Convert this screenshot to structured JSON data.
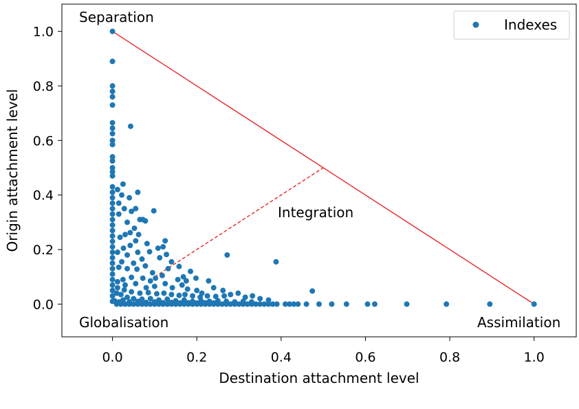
{
  "chart_data": {
    "type": "scatter",
    "xlabel": "Destination attachment level",
    "ylabel": "Origin attachment level",
    "xlim": [
      -0.12,
      1.1
    ],
    "ylim": [
      -0.12,
      1.1
    ],
    "x_ticks": [
      0.0,
      0.2,
      0.4,
      0.6,
      0.8,
      1.0
    ],
    "x_tick_labels": [
      "0.0",
      "0.2",
      "0.4",
      "0.6",
      "0.8",
      "1.0"
    ],
    "y_ticks": [
      0.0,
      0.2,
      0.4,
      0.6,
      0.8,
      1.0
    ],
    "y_tick_labels": [
      "0.0",
      "0.2",
      "0.4",
      "0.6",
      "0.8",
      "1.0"
    ],
    "grid": false,
    "legend": {
      "placement": "top-right",
      "entries": [
        "Indexes"
      ]
    },
    "colors": {
      "points": "#1f77b4",
      "lines": "#e8262a",
      "axes": "#000000"
    },
    "annotations": {
      "separation": "Separation",
      "integration": "Integration",
      "globalisation": "Globalisation",
      "assimilation": "Assimilation"
    },
    "reference_lines": [
      {
        "style": "solid",
        "x": [
          0.0,
          1.0
        ],
        "y": [
          1.0,
          0.0
        ]
      },
      {
        "style": "dashed",
        "x": [
          0.1,
          0.5
        ],
        "y": [
          0.1,
          0.5
        ]
      }
    ],
    "series": [
      {
        "name": "Indexes",
        "points": [
          [
            0.0,
            1.0
          ],
          [
            0.0,
            0.89
          ],
          [
            0.0,
            0.8
          ],
          [
            0.0,
            0.78
          ],
          [
            0.0,
            0.76
          ],
          [
            0.0,
            0.73
          ],
          [
            0.0,
            0.665
          ],
          [
            0.0,
            0.645
          ],
          [
            0.0,
            0.625
          ],
          [
            0.0,
            0.6
          ],
          [
            0.0,
            0.585
          ],
          [
            0.0,
            0.54
          ],
          [
            0.0,
            0.525
          ],
          [
            0.0,
            0.5
          ],
          [
            0.0,
            0.485
          ],
          [
            0.0,
            0.47
          ],
          [
            0.0,
            0.43
          ],
          [
            0.0,
            0.41
          ],
          [
            0.0,
            0.39
          ],
          [
            0.0,
            0.37
          ],
          [
            0.0,
            0.35
          ],
          [
            0.0,
            0.33
          ],
          [
            0.0,
            0.31
          ],
          [
            0.0,
            0.29
          ],
          [
            0.0,
            0.27
          ],
          [
            0.0,
            0.25
          ],
          [
            0.0,
            0.23
          ],
          [
            0.0,
            0.21
          ],
          [
            0.0,
            0.19
          ],
          [
            0.0,
            0.17
          ],
          [
            0.0,
            0.15
          ],
          [
            0.0,
            0.13
          ],
          [
            0.0,
            0.11
          ],
          [
            0.0,
            0.09
          ],
          [
            0.0,
            0.07
          ],
          [
            0.0,
            0.05
          ],
          [
            0.0,
            0.03
          ],
          [
            0.0,
            0.01
          ],
          [
            0.043,
            0.652
          ],
          [
            0.012,
            0.42
          ],
          [
            0.015,
            0.37
          ],
          [
            0.025,
            0.44
          ],
          [
            0.022,
            0.4
          ],
          [
            0.015,
            0.33
          ],
          [
            0.028,
            0.35
          ],
          [
            0.04,
            0.39
          ],
          [
            0.035,
            0.3
          ],
          [
            0.045,
            0.34
          ],
          [
            0.055,
            0.35
          ],
          [
            0.06,
            0.41
          ],
          [
            0.065,
            0.31
          ],
          [
            0.072,
            0.31
          ],
          [
            0.078,
            0.305
          ],
          [
            0.098,
            0.342
          ],
          [
            0.052,
            0.278
          ],
          [
            0.03,
            0.255
          ],
          [
            0.018,
            0.245
          ],
          [
            0.042,
            0.262
          ],
          [
            0.062,
            0.255
          ],
          [
            0.082,
            0.222
          ],
          [
            0.125,
            0.232
          ],
          [
            0.12,
            0.21
          ],
          [
            0.108,
            0.205
          ],
          [
            0.088,
            0.192
          ],
          [
            0.055,
            0.232
          ],
          [
            0.042,
            0.215
          ],
          [
            0.026,
            0.205
          ],
          [
            0.012,
            0.19
          ],
          [
            0.035,
            0.18
          ],
          [
            0.06,
            0.19
          ],
          [
            0.07,
            0.165
          ],
          [
            0.05,
            0.15
          ],
          [
            0.022,
            0.155
          ],
          [
            0.015,
            0.135
          ],
          [
            0.035,
            0.13
          ],
          [
            0.058,
            0.128
          ],
          [
            0.078,
            0.14
          ],
          [
            0.095,
            0.115
          ],
          [
            0.112,
            0.17
          ],
          [
            0.128,
            0.182
          ],
          [
            0.14,
            0.155
          ],
          [
            0.158,
            0.138
          ],
          [
            0.132,
            0.13
          ],
          [
            0.118,
            0.105
          ],
          [
            0.102,
            0.095
          ],
          [
            0.09,
            0.085
          ],
          [
            0.072,
            0.095
          ],
          [
            0.045,
            0.098
          ],
          [
            0.025,
            0.09
          ],
          [
            0.012,
            0.082
          ],
          [
            0.03,
            0.07
          ],
          [
            0.055,
            0.075
          ],
          [
            0.08,
            0.06
          ],
          [
            0.1,
            0.065
          ],
          [
            0.125,
            0.075
          ],
          [
            0.142,
            0.06
          ],
          [
            0.165,
            0.07
          ],
          [
            0.178,
            0.055
          ],
          [
            0.2,
            0.05
          ],
          [
            0.212,
            0.04
          ],
          [
            0.228,
            0.085
          ],
          [
            0.24,
            0.06
          ],
          [
            0.262,
            0.05
          ],
          [
            0.272,
            0.18
          ],
          [
            0.198,
            0.095
          ],
          [
            0.175,
            0.085
          ],
          [
            0.155,
            0.09
          ],
          [
            0.185,
            0.12
          ],
          [
            0.168,
            0.1
          ],
          [
            0.012,
            0.06
          ],
          [
            0.028,
            0.052
          ],
          [
            0.045,
            0.045
          ],
          [
            0.065,
            0.04
          ],
          [
            0.085,
            0.042
          ],
          [
            0.105,
            0.038
          ],
          [
            0.122,
            0.04
          ],
          [
            0.14,
            0.035
          ],
          [
            0.158,
            0.032
          ],
          [
            0.172,
            0.035
          ],
          [
            0.19,
            0.03
          ],
          [
            0.208,
            0.025
          ],
          [
            0.225,
            0.03
          ],
          [
            0.245,
            0.028
          ],
          [
            0.265,
            0.03
          ],
          [
            0.28,
            0.035
          ],
          [
            0.298,
            0.04
          ],
          [
            0.315,
            0.025
          ],
          [
            0.332,
            0.03
          ],
          [
            0.35,
            0.02
          ],
          [
            0.37,
            0.015
          ],
          [
            0.388,
            0.155
          ],
          [
            0.474,
            0.048
          ],
          [
            0.01,
            0.04
          ],
          [
            0.02,
            0.035
          ],
          [
            0.035,
            0.025
          ],
          [
            0.05,
            0.02
          ],
          [
            0.07,
            0.018
          ],
          [
            0.09,
            0.02
          ],
          [
            0.11,
            0.015
          ],
          [
            0.13,
            0.018
          ],
          [
            0.15,
            0.012
          ],
          [
            0.17,
            0.015
          ],
          [
            0.19,
            0.01
          ],
          [
            0.21,
            0.012
          ],
          [
            0.23,
            0.01
          ],
          [
            0.25,
            0.012
          ],
          [
            0.27,
            0.01
          ],
          [
            0.29,
            0.008
          ],
          [
            0.31,
            0.01
          ],
          [
            0.33,
            0.008
          ],
          [
            0.005,
            0.012
          ],
          [
            0.015,
            0.008
          ],
          [
            0.025,
            0.015
          ],
          [
            0.04,
            0.008
          ],
          [
            0.06,
            0.01
          ],
          [
            0.08,
            0.006
          ],
          [
            0.1,
            0.008
          ],
          [
            0.12,
            0.005
          ],
          [
            0.14,
            0.006
          ],
          [
            0.16,
            0.004
          ],
          [
            0.18,
            0.005
          ],
          [
            0.2,
            0.004
          ],
          [
            0.22,
            0.005
          ],
          [
            0.24,
            0.004
          ],
          [
            0.01,
            0.0
          ],
          [
            0.02,
            0.0
          ],
          [
            0.03,
            0.0
          ],
          [
            0.04,
            0.0
          ],
          [
            0.05,
            0.0
          ],
          [
            0.06,
            0.0
          ],
          [
            0.07,
            0.0
          ],
          [
            0.08,
            0.0
          ],
          [
            0.09,
            0.0
          ],
          [
            0.1,
            0.0
          ],
          [
            0.11,
            0.0
          ],
          [
            0.12,
            0.0
          ],
          [
            0.13,
            0.0
          ],
          [
            0.14,
            0.0
          ],
          [
            0.15,
            0.0
          ],
          [
            0.16,
            0.0
          ],
          [
            0.17,
            0.0
          ],
          [
            0.18,
            0.0
          ],
          [
            0.19,
            0.0
          ],
          [
            0.2,
            0.0
          ],
          [
            0.21,
            0.0
          ],
          [
            0.22,
            0.0
          ],
          [
            0.23,
            0.0
          ],
          [
            0.24,
            0.0
          ],
          [
            0.25,
            0.0
          ],
          [
            0.26,
            0.0
          ],
          [
            0.27,
            0.0
          ],
          [
            0.28,
            0.0
          ],
          [
            0.29,
            0.0
          ],
          [
            0.3,
            0.0
          ],
          [
            0.31,
            0.0
          ],
          [
            0.32,
            0.0
          ],
          [
            0.33,
            0.0
          ],
          [
            0.34,
            0.0
          ],
          [
            0.35,
            0.0
          ],
          [
            0.36,
            0.0
          ],
          [
            0.37,
            0.0
          ],
          [
            0.38,
            0.0
          ],
          [
            0.39,
            0.0
          ],
          [
            0.41,
            0.0
          ],
          [
            0.42,
            0.0
          ],
          [
            0.43,
            0.0
          ],
          [
            0.44,
            0.0
          ],
          [
            0.46,
            0.0
          ],
          [
            0.49,
            0.0
          ],
          [
            0.52,
            0.0
          ],
          [
            0.555,
            0.0
          ],
          [
            0.605,
            0.0
          ],
          [
            0.622,
            0.0
          ],
          [
            0.698,
            0.0
          ],
          [
            0.792,
            0.0
          ],
          [
            0.895,
            0.0
          ],
          [
            1.0,
            0.0
          ]
        ]
      }
    ]
  }
}
